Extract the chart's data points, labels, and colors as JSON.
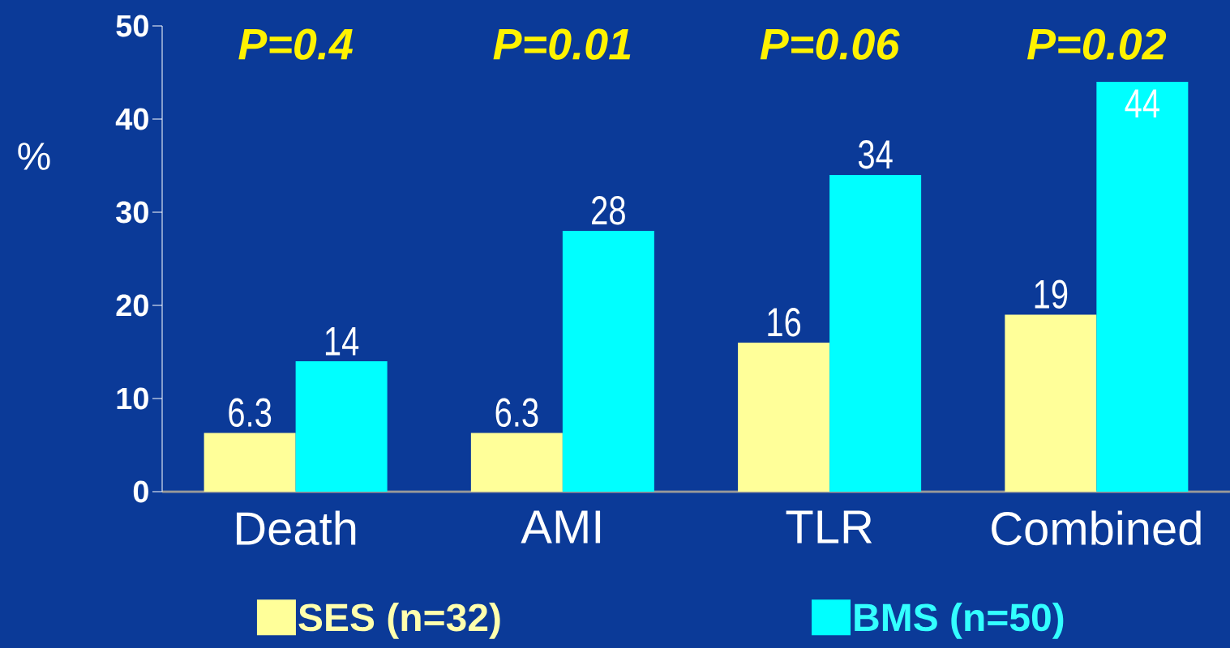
{
  "chart_data": {
    "type": "bar",
    "ylabel": "%",
    "categories": [
      "Death",
      "AMI",
      "TLR",
      "Combined"
    ],
    "series": [
      {
        "name": "SES (n=32)",
        "color": "#ffff99",
        "values": [
          6.3,
          6.3,
          16,
          19
        ]
      },
      {
        "name": "BMS (n=50)",
        "color": "#00ffff",
        "values": [
          14,
          28,
          34,
          44
        ]
      }
    ],
    "ylim": [
      0,
      50
    ],
    "yticks": [
      0,
      10,
      20,
      30,
      40,
      50
    ],
    "data_labels": true,
    "grid": false,
    "legend": "bottom",
    "annotations": [
      "P=0.4",
      "P=0.01",
      "P=0.06",
      "P=0.02"
    ]
  }
}
